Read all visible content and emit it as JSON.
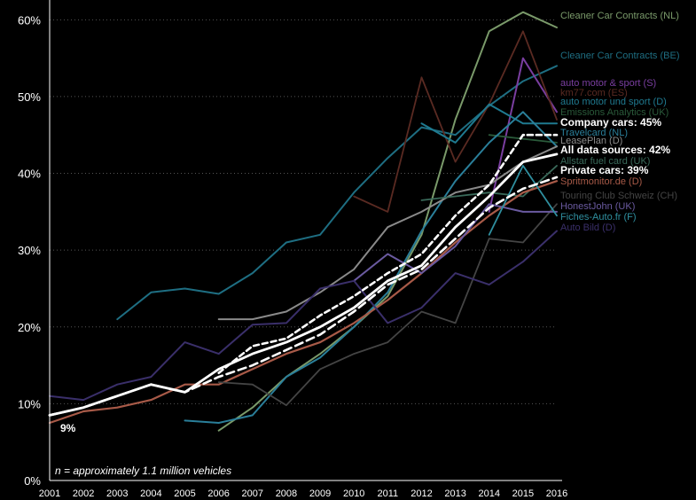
{
  "chart_data": {
    "type": "line",
    "title": "",
    "xlabel": "",
    "ylabel": "",
    "x": [
      2001,
      2002,
      2003,
      2004,
      2005,
      2006,
      2007,
      2008,
      2009,
      2010,
      2011,
      2012,
      2013,
      2014,
      2015,
      2016
    ],
    "ylim": [
      0,
      62
    ],
    "yticks": [
      0,
      10,
      20,
      30,
      40,
      50,
      60
    ],
    "ytick_labels": [
      "0%",
      "10%",
      "20%",
      "30%",
      "40%",
      "50%",
      "60%"
    ],
    "grid": "y-dashed",
    "annotations": [
      {
        "text": "9%",
        "x": 2001,
        "y": 8.8
      },
      {
        "text": "n = approximately 1.1 million vehicles"
      }
    ],
    "series": [
      {
        "name": "Cleaner Car Contracts (NL)",
        "color": "#7a9a6a",
        "width": 2,
        "values": [
          null,
          null,
          null,
          null,
          null,
          6.5,
          9.5,
          13.5,
          16.5,
          20,
          24,
          32,
          47,
          58.5,
          61,
          59
        ]
      },
      {
        "name": "Cleaner Car Contracts (BE)",
        "color": "#1e6e82",
        "width": 2,
        "values": [
          null,
          null,
          21,
          24.5,
          25,
          24.3,
          27,
          31,
          32,
          37.5,
          42,
          46,
          45,
          48.8,
          52,
          54
        ]
      },
      {
        "name": "auto motor & sport (S)",
        "color": "#7a3ea0",
        "width": 2,
        "values": [
          null,
          null,
          null,
          null,
          null,
          null,
          null,
          null,
          null,
          null,
          null,
          null,
          null,
          35,
          55,
          48
        ]
      },
      {
        "name": "km77.com (ES)",
        "color": "#5a2a22",
        "width": 1.8,
        "values": [
          null,
          null,
          null,
          null,
          null,
          null,
          null,
          null,
          null,
          37,
          35,
          52.5,
          41.5,
          49,
          58.5,
          47
        ]
      },
      {
        "name": "auto motor und sport (D)",
        "color": "#1f7a90",
        "width": 2,
        "values": [
          null,
          null,
          null,
          null,
          null,
          null,
          null,
          null,
          null,
          null,
          null,
          46.5,
          44,
          49,
          46.5,
          46.5
        ]
      },
      {
        "name": "Emissions Analytics (UK)",
        "color": "#2a5a3a",
        "width": 1.8,
        "values": [
          null,
          null,
          null,
          null,
          null,
          null,
          null,
          null,
          null,
          null,
          null,
          null,
          null,
          45,
          44.5,
          44
        ]
      },
      {
        "name": "Company cars: 45%",
        "color": "#ffffff",
        "width": 2.6,
        "dash": "6,4",
        "values": [
          null,
          null,
          null,
          null,
          null,
          14,
          17.5,
          18.5,
          21.5,
          24,
          27,
          29.5,
          34.5,
          38.5,
          45,
          45
        ]
      },
      {
        "name": "Travelcard (NL)",
        "color": "#2a7f9a",
        "width": 2,
        "values": [
          null,
          null,
          null,
          null,
          7.8,
          7.5,
          8.5,
          13.5,
          16,
          20,
          24.5,
          32.5,
          39,
          44,
          48,
          43.5
        ]
      },
      {
        "name": "LeasePlan (D)",
        "color": "#8a8a8a",
        "width": 2,
        "values": [
          null,
          null,
          null,
          null,
          null,
          21,
          21,
          22,
          24.5,
          27.5,
          33,
          35,
          37.5,
          38.5,
          41.5,
          43.5
        ]
      },
      {
        "name": "All data sources: 42%",
        "color": "#ffffff",
        "width": 2.8,
        "values": [
          8.5,
          9.5,
          11,
          12.5,
          11.5,
          14.5,
          16.5,
          18,
          20,
          22.5,
          26,
          28,
          33,
          37,
          41.5,
          42.5
        ]
      },
      {
        "name": "Allstar fuel card (UK)",
        "color": "#3a6a5a",
        "width": 1.8,
        "values": [
          null,
          null,
          null,
          null,
          null,
          null,
          null,
          null,
          null,
          null,
          null,
          36.5,
          37,
          37.5,
          37,
          41
        ]
      },
      {
        "name": "Private cars: 39%",
        "color": "#ffffff",
        "width": 2.6,
        "dash": "9,5",
        "values": [
          8.5,
          9.5,
          11,
          12.5,
          11.5,
          13.5,
          15,
          17,
          19,
          22,
          25.5,
          27.5,
          31.5,
          35.5,
          38,
          39.5
        ]
      },
      {
        "name": "Spritmonitor.de (D)",
        "color": "#a85a48",
        "width": 2.2,
        "values": [
          7.5,
          9,
          9.5,
          10.5,
          12.5,
          12.5,
          14.5,
          16.5,
          18,
          20.5,
          23.5,
          27,
          31,
          34.5,
          37.5,
          39
        ]
      },
      {
        "name": "Touring Club Schweiz (CH)",
        "color": "#444444",
        "width": 1.8,
        "values": [
          null,
          null,
          null,
          null,
          null,
          12.8,
          12.5,
          9.8,
          14.5,
          16.5,
          18,
          22,
          20.5,
          31.5,
          31,
          36
        ]
      },
      {
        "name": "HonestJohn (UK)",
        "color": "#6a5aa0",
        "width": 2,
        "values": [
          null,
          null,
          null,
          null,
          null,
          null,
          null,
          null,
          null,
          26,
          29.5,
          27,
          30.5,
          36,
          35,
          35
        ]
      },
      {
        "name": "Fiches-Auto.fr (F)",
        "color": "#2f8f9f",
        "width": 1.8,
        "values": [
          null,
          null,
          null,
          null,
          null,
          null,
          null,
          null,
          null,
          null,
          null,
          null,
          null,
          32,
          41,
          34.5
        ]
      },
      {
        "name": "Auto Bild (D)",
        "color": "#3a2f6a",
        "width": 2,
        "values": [
          11,
          10.5,
          12.5,
          13.5,
          18,
          16.5,
          20.3,
          20.5,
          25,
          26,
          20.5,
          22.5,
          27,
          25.5,
          28.5,
          32.5
        ]
      }
    ]
  },
  "legend_labels": [
    {
      "text": "Cleaner Car Contracts (NL)",
      "color": "#7a9a6a",
      "bold": false
    },
    {
      "text": "Cleaner Car Contracts (BE)",
      "color": "#1e6e82",
      "bold": false
    },
    {
      "text": "auto motor & sport (S)",
      "color": "#7a3ea0",
      "bold": false
    },
    {
      "text": "km77.com (ES)",
      "color": "#5a2a22",
      "bold": false
    },
    {
      "text": "auto motor und sport (D)",
      "color": "#1f7a90",
      "bold": false
    },
    {
      "text": "Emissions Analytics (UK)",
      "color": "#2a5a3a",
      "bold": false
    },
    {
      "text": "Company cars: 45%",
      "color": "#ffffff",
      "bold": true
    },
    {
      "text": "Travelcard (NL)",
      "color": "#2a7f9a",
      "bold": false
    },
    {
      "text": "LeasePlan (D)",
      "color": "#8a8a8a",
      "bold": false
    },
    {
      "text": "All data sources: 42%",
      "color": "#ffffff",
      "bold": true
    },
    {
      "text": "Allstar fuel card (UK)",
      "color": "#3a6a5a",
      "bold": false
    },
    {
      "text": "Private cars: 39%",
      "color": "#ffffff",
      "bold": true
    },
    {
      "text": "Spritmonitor.de (D)",
      "color": "#a85a48",
      "bold": false
    },
    {
      "text": "Touring Club Schweiz (CH)",
      "color": "#444444",
      "bold": false
    },
    {
      "text": "HonestJohn (UK)",
      "color": "#6a5aa0",
      "bold": false
    },
    {
      "text": "Fiches-Auto.fr (F)",
      "color": "#2f8f9f",
      "bold": false
    },
    {
      "text": "Auto Bild (D)",
      "color": "#3a2f6a",
      "bold": false
    }
  ],
  "colors": {
    "background": "#000000",
    "axis": "#ffffff",
    "grid": "#555555",
    "tick_text": "#ffffff"
  }
}
